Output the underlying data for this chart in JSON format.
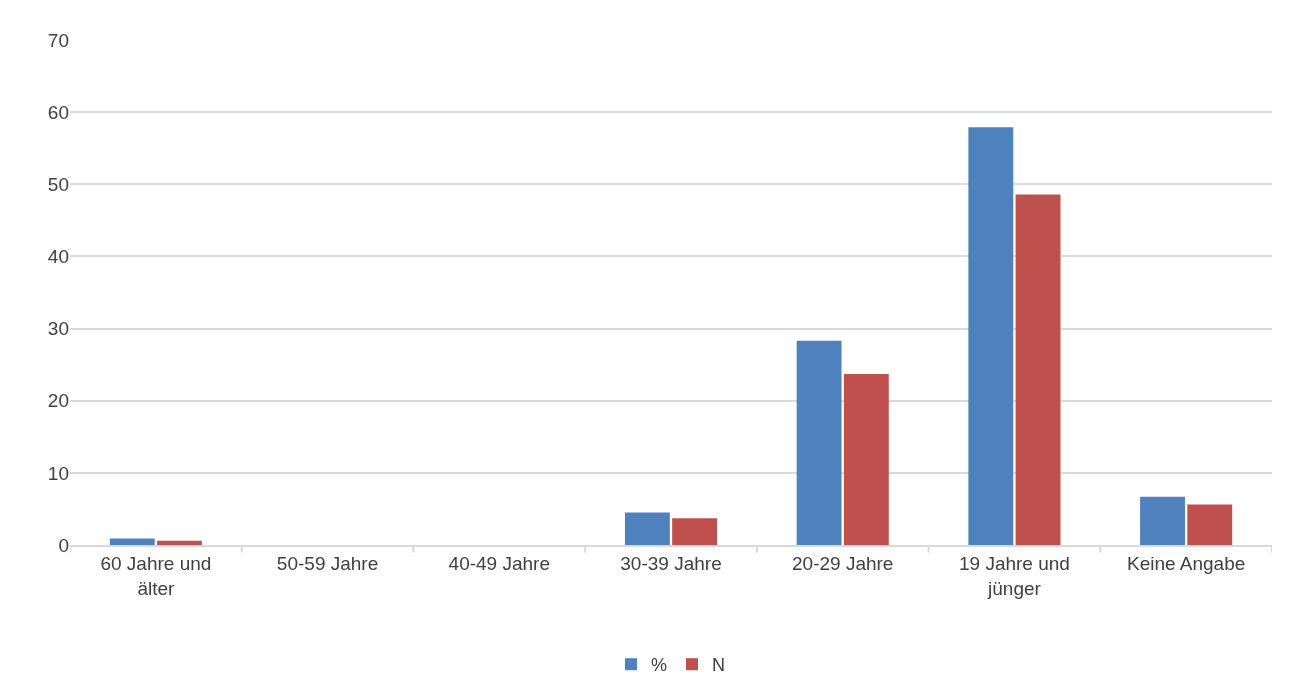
{
  "chart_data": {
    "type": "bar",
    "categories": [
      "60 Jahre und älter",
      "50-59 Jahre",
      "40-49 Jahre",
      "30-39 Jahre",
      "20-29 Jahre",
      "19 Jahre und jünger",
      "Keine Angabe"
    ],
    "series": [
      {
        "name": "%",
        "color": "#4f81bd",
        "values": [
          0.9,
          0,
          0,
          4.5,
          28.3,
          57.9,
          6.7
        ]
      },
      {
        "name": "N",
        "color": "#c0504d",
        "values": [
          0.6,
          0,
          0,
          3.7,
          23.7,
          48.6,
          5.6
        ]
      }
    ],
    "ylim": [
      0,
      70
    ],
    "yticks": [
      0,
      10,
      20,
      30,
      40,
      50,
      60,
      70
    ],
    "grid": "y",
    "legend": "bottom"
  }
}
